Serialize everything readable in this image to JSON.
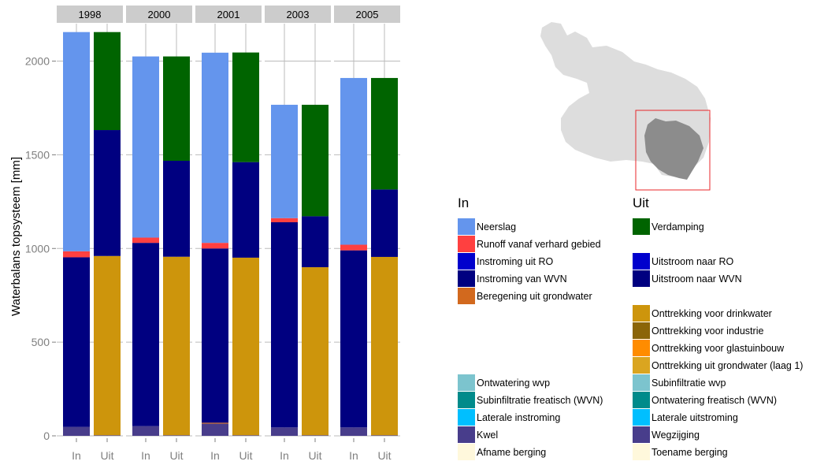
{
  "chart_data": {
    "type": "bar",
    "stacked": true,
    "ylabel": "Waterbalans topsysteem [mm]",
    "yticks": [
      0,
      500,
      1000,
      1500,
      2000
    ],
    "ylim": [
      0,
      2200
    ],
    "grid": true,
    "facets": [
      {
        "label": "1998",
        "In": [
          {
            "series": "Kwel",
            "value": 48
          },
          {
            "series": "Instroming van WVN",
            "value": 905
          },
          {
            "series": "Runoff vanaf verhard gebied",
            "value": 32
          },
          {
            "series": "Neerslag",
            "value": 1170
          }
        ],
        "Uit": [
          {
            "series": "Wegzijging",
            "value": 3
          },
          {
            "series": "Onttrekking voor drinkwater",
            "value": 957
          },
          {
            "series": "Uitstroom naar WVN",
            "value": 672
          },
          {
            "series": "Verdamping",
            "value": 523
          }
        ]
      },
      {
        "label": "2000",
        "In": [
          {
            "series": "Kwel",
            "value": 52
          },
          {
            "series": "Instroming van WVN",
            "value": 978
          },
          {
            "series": "Runoff vanaf verhard gebied",
            "value": 28
          },
          {
            "series": "Neerslag",
            "value": 967
          }
        ],
        "Uit": [
          {
            "series": "Wegzijging",
            "value": 3
          },
          {
            "series": "Onttrekking voor drinkwater",
            "value": 953
          },
          {
            "series": "Uitstroom naar WVN",
            "value": 512
          },
          {
            "series": "Verdamping",
            "value": 557
          }
        ]
      },
      {
        "label": "2001",
        "In": [
          {
            "series": "Kwel",
            "value": 65
          },
          {
            "series": "Beregening uit grondwater",
            "value": 5
          },
          {
            "series": "Instroming van WVN",
            "value": 930
          },
          {
            "series": "Runoff vanaf verhard gebied",
            "value": 30
          },
          {
            "series": "Neerslag",
            "value": 1015
          }
        ],
        "Uit": [
          {
            "series": "Wegzijging",
            "value": 3
          },
          {
            "series": "Onttrekking voor drinkwater",
            "value": 948
          },
          {
            "series": "Uitstroom naar WVN",
            "value": 510
          },
          {
            "series": "Verdamping",
            "value": 585
          }
        ]
      },
      {
        "label": "2003",
        "In": [
          {
            "series": "Kwel",
            "value": 45
          },
          {
            "series": "Instroming van WVN",
            "value": 1095
          },
          {
            "series": "Runoff vanaf verhard gebied",
            "value": 22
          },
          {
            "series": "Neerslag",
            "value": 605
          }
        ],
        "Uit": [
          {
            "series": "Wegzijging",
            "value": 3
          },
          {
            "series": "Onttrekking voor drinkwater",
            "value": 897
          },
          {
            "series": "Uitstroom naar WVN",
            "value": 272
          },
          {
            "series": "Verdamping",
            "value": 595
          }
        ]
      },
      {
        "label": "2005",
        "In": [
          {
            "series": "Kwel",
            "value": 45
          },
          {
            "series": "Instroming van WVN",
            "value": 945
          },
          {
            "series": "Runoff vanaf verhard gebied",
            "value": 30
          },
          {
            "series": "Neerslag",
            "value": 890
          }
        ],
        "Uit": [
          {
            "series": "Wegzijging",
            "value": 3
          },
          {
            "series": "Onttrekking voor drinkwater",
            "value": 952
          },
          {
            "series": "Uitstroom naar WVN",
            "value": 360
          },
          {
            "series": "Verdamping",
            "value": 595
          }
        ]
      }
    ],
    "x_categories": [
      "In",
      "Uit"
    ],
    "legend": {
      "placement": "right",
      "in_title": "In",
      "uit_title": "Uit",
      "in": [
        {
          "label": "Neerslag",
          "color": "#6495ED",
          "slot": 0
        },
        {
          "label": "Runoff vanaf verhard gebied",
          "color": "#FF4040",
          "slot": 1
        },
        {
          "label": "Instroming uit RO",
          "color": "#0000CD",
          "slot": 2
        },
        {
          "label": "Instroming van WVN",
          "color": "#000080",
          "slot": 3
        },
        {
          "label": "Beregening uit grondwater",
          "color": "#D2691E",
          "slot": 4
        },
        {
          "label": "Ontwatering wvp",
          "color": "#7CC4CE",
          "slot": 9
        },
        {
          "label": "Subinfiltratie freatisch (WVN)",
          "color": "#008B8B",
          "slot": 10
        },
        {
          "label": "Laterale instroming",
          "color": "#00BFFF",
          "slot": 11
        },
        {
          "label": "Kwel",
          "color": "#483D8B",
          "slot": 12
        },
        {
          "label": "Afname berging",
          "color": "#FFF8DC",
          "slot": 13
        }
      ],
      "uit": [
        {
          "label": "Verdamping",
          "color": "#006400",
          "slot": 0
        },
        {
          "label": "Uitstroom naar RO",
          "color": "#0000CD",
          "slot": 2
        },
        {
          "label": "Uitstroom naar WVN",
          "color": "#000080",
          "slot": 3
        },
        {
          "label": "Onttrekking voor drinkwater",
          "color": "#CD950C",
          "slot": 5
        },
        {
          "label": "Onttrekking voor industrie",
          "color": "#8B6508",
          "slot": 6
        },
        {
          "label": "Onttrekking voor glastuinbouw",
          "color": "#FF8C00",
          "slot": 7
        },
        {
          "label": "Onttrekking uit grondwater (laag 1)",
          "color": "#DAA520",
          "slot": 8
        },
        {
          "label": "Subinfiltratie wvp",
          "color": "#7CC4CE",
          "slot": 9
        },
        {
          "label": "Ontwatering freatisch (WVN)",
          "color": "#008B8B",
          "slot": 10
        },
        {
          "label": "Laterale uitstroming",
          "color": "#00BFFF",
          "slot": 11
        },
        {
          "label": "Wegzijging",
          "color": "#483D8B",
          "slot": 12
        },
        {
          "label": "Toename berging",
          "color": "#FFF8DC",
          "slot": 13
        }
      ]
    },
    "colors": {
      "Neerslag": "#6495ED",
      "Runoff vanaf verhard gebied": "#FF4040",
      "Instroming van WVN": "#000080",
      "Beregening uit grondwater": "#D2691E",
      "Kwel": "#483D8B",
      "Verdamping": "#006400",
      "Uitstroom naar WVN": "#000080",
      "Onttrekking voor drinkwater": "#CD950C",
      "Wegzijging": "#483D8B"
    },
    "panel_colors": {
      "strip": "#CCCCCC",
      "grid": "#BBBBBB",
      "axis_text": "#7F7F7F"
    },
    "map": {
      "region_color": "#DDDDDD",
      "highlight_color": "#8C8C8C",
      "frame_color": "#E8262A"
    }
  }
}
